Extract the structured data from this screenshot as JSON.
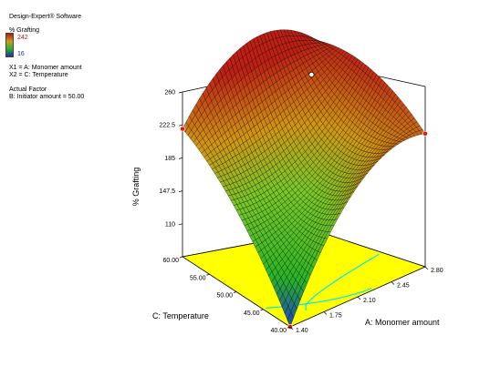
{
  "panel": {
    "software": "Design-Expert® Software",
    "response_name": "% Grafting",
    "scale_high": "242",
    "scale_low": "16",
    "x1": "X1 = A: Monomer amount",
    "x2": "X2 = C: Temperature",
    "actual_factor_heading": "Actual Factor",
    "actual_factor": "B: Initiator amount = 50.00",
    "colors": {
      "high": "#b21a12",
      "low": "#1c2fae"
    }
  },
  "chart_data": {
    "type": "surface3d",
    "title": "",
    "zlabel": "% Grafting",
    "xlabel": "A: Monomer amount",
    "ylabel": "C: Temperature",
    "x_ticks": [
      "1.40",
      "1.75",
      "2.10",
      "2.45",
      "2.80"
    ],
    "y_ticks": [
      "40.00",
      "45.00",
      "50.00",
      "55.00",
      "60.00"
    ],
    "z_ticks": [
      "110",
      "147.5",
      "185",
      "222.5",
      "260"
    ],
    "xlim": [
      1.4,
      2.8
    ],
    "ylim": [
      40,
      60
    ],
    "zlim": [
      72.5,
      260
    ],
    "floor_color": "#ffff00",
    "contour_color": "#00e5ff",
    "design_point_color": "#e01a10",
    "surface_corners": [
      {
        "x": 1.4,
        "y": 60,
        "z": 218
      },
      {
        "x": 2.8,
        "y": 60,
        "z": 250
      },
      {
        "x": 2.8,
        "y": 40,
        "z": 224
      },
      {
        "x": 1.4,
        "y": 40,
        "z": 72.5
      }
    ]
  }
}
